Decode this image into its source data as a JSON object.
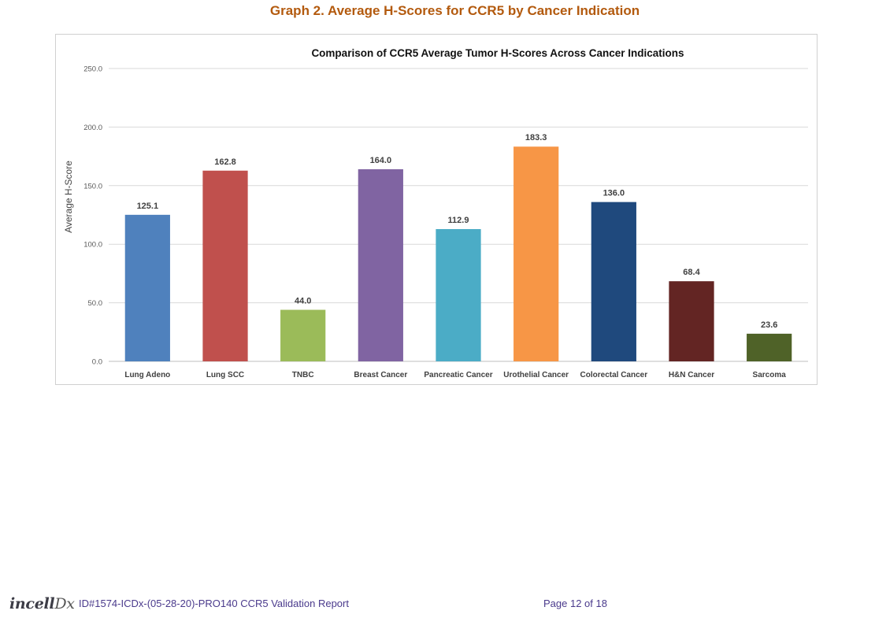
{
  "page": {
    "heading": "Graph 2. Average H-Scores for CCR5 by Cancer Indication"
  },
  "chart_data": {
    "type": "bar",
    "title": "Comparison of CCR5 Average Tumor H-Scores Across Cancer Indications",
    "xlabel": "",
    "ylabel": "Average H-Score",
    "ylim": [
      0,
      250
    ],
    "yticks": [
      "0.0",
      "50.0",
      "100.0",
      "150.0",
      "200.0",
      "250.0"
    ],
    "categories": [
      "Lung Adeno",
      "Lung SCC",
      "TNBC",
      "Breast Cancer",
      "Pancreatic Cancer",
      "Urothelial Cancer",
      "Colorectal Cancer",
      "H&N Cancer",
      "Sarcoma"
    ],
    "values": [
      125.1,
      162.8,
      44.0,
      164.0,
      112.9,
      183.3,
      136.0,
      68.4,
      23.6
    ],
    "value_labels": [
      "125.1",
      "162.8",
      "44.0",
      "164.0",
      "112.9",
      "183.3",
      "136.0",
      "68.4",
      "23.6"
    ],
    "colors": [
      "#4f81bd",
      "#c0504d",
      "#9bbb59",
      "#8064a2",
      "#4bacc6",
      "#f79646",
      "#1f497d",
      "#632523",
      "#4f6228"
    ],
    "grid": true,
    "legend": "none"
  },
  "footer": {
    "logo_main": "incell",
    "logo_suffix": "Dx",
    "document_id": "ID#1574-ICDx-(05-28-20)-PRO140 CCR5 Validation Report",
    "page_number": "Page 12 of 18"
  }
}
